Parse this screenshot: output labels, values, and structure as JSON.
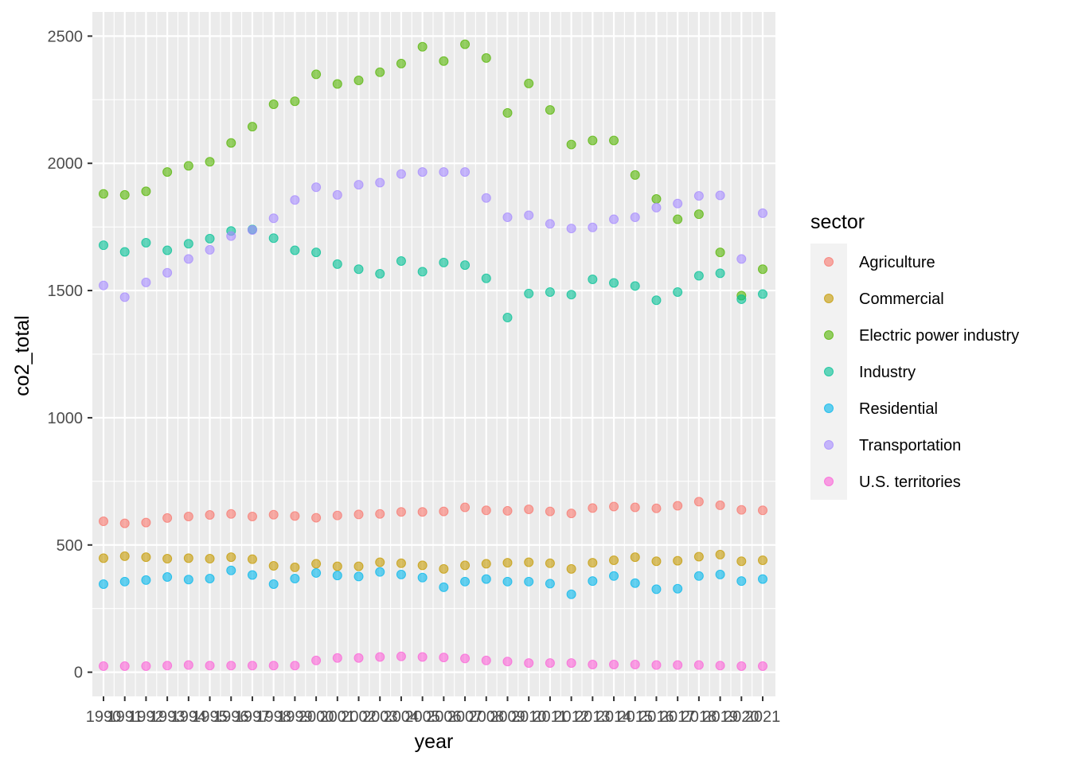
{
  "chart_data": {
    "type": "scatter",
    "xlabel": "year",
    "ylabel": "co2_total",
    "ylim": [
      -95,
      2595
    ],
    "yticks": [
      0,
      500,
      1000,
      1500,
      2000,
      2500
    ],
    "x": [
      "1990",
      "1991",
      "1992",
      "1993",
      "1994",
      "1995",
      "1996",
      "1997",
      "1998",
      "1999",
      "2000",
      "2001",
      "2002",
      "2003",
      "2004",
      "2005",
      "2006",
      "2007",
      "2008",
      "2009",
      "2010",
      "2011",
      "2012",
      "2013",
      "2014",
      "2015",
      "2016",
      "2017",
      "2018",
      "2019",
      "2020",
      "2021"
    ],
    "grid": true,
    "legend": {
      "title": "sector",
      "position": "right"
    },
    "series": [
      {
        "name": "Agriculture",
        "color": "#F8766D",
        "values": [
          593,
          585,
          588,
          606,
          612,
          618,
          622,
          612,
          619,
          614,
          607,
          616,
          620,
          622,
          630,
          630,
          632,
          648,
          636,
          634,
          640,
          632,
          624,
          645,
          651,
          648,
          644,
          654,
          670,
          656,
          638,
          636
        ]
      },
      {
        "name": "Commercial",
        "color": "#C49A00",
        "values": [
          448,
          456,
          452,
          446,
          448,
          446,
          452,
          444,
          418,
          412,
          426,
          416,
          416,
          432,
          428,
          420,
          406,
          420,
          426,
          430,
          432,
          428,
          406,
          430,
          440,
          452,
          436,
          438,
          454,
          462,
          436,
          440
        ]
      },
      {
        "name": "Electric power industry",
        "color": "#53B400",
        "values": [
          1880,
          1876,
          1890,
          1966,
          1990,
          2006,
          2080,
          2144,
          2232,
          2244,
          2350,
          2312,
          2326,
          2358,
          2392,
          2458,
          2402,
          2468,
          2414,
          2198,
          2314,
          2210,
          2074,
          2090,
          2090,
          1954,
          1860,
          1780,
          1800,
          1650,
          1480,
          1584
        ]
      },
      {
        "name": "Industry",
        "color": "#00C094",
        "values": [
          1678,
          1652,
          1688,
          1658,
          1684,
          1704,
          1734,
          1740,
          1706,
          1658,
          1650,
          1604,
          1584,
          1566,
          1616,
          1574,
          1610,
          1600,
          1548,
          1394,
          1488,
          1494,
          1484,
          1544,
          1530,
          1518,
          1462,
          1494,
          1558,
          1568,
          1466,
          1486
        ]
      },
      {
        "name": "Residential",
        "color": "#00B6EB",
        "values": [
          346,
          356,
          362,
          374,
          364,
          368,
          400,
          382,
          346,
          368,
          390,
          380,
          376,
          394,
          384,
          372,
          334,
          356,
          366,
          356,
          356,
          348,
          306,
          358,
          378,
          350,
          326,
          328,
          378,
          384,
          358,
          366
        ]
      },
      {
        "name": "Transportation",
        "color": "#A58AFF",
        "values": [
          1520,
          1474,
          1532,
          1570,
          1624,
          1660,
          1714,
          1738,
          1784,
          1856,
          1906,
          1876,
          1916,
          1924,
          1958,
          1966,
          1966,
          1966,
          1864,
          1788,
          1796,
          1762,
          1744,
          1748,
          1780,
          1788,
          1826,
          1842,
          1872,
          1874,
          1624,
          1804
        ]
      },
      {
        "name": "U.S. territories",
        "color": "#FB61D7",
        "values": [
          24,
          24,
          24,
          26,
          28,
          26,
          26,
          26,
          26,
          26,
          46,
          56,
          56,
          60,
          62,
          60,
          58,
          54,
          46,
          42,
          36,
          36,
          36,
          30,
          30,
          30,
          28,
          28,
          28,
          26,
          24,
          24
        ]
      }
    ]
  }
}
